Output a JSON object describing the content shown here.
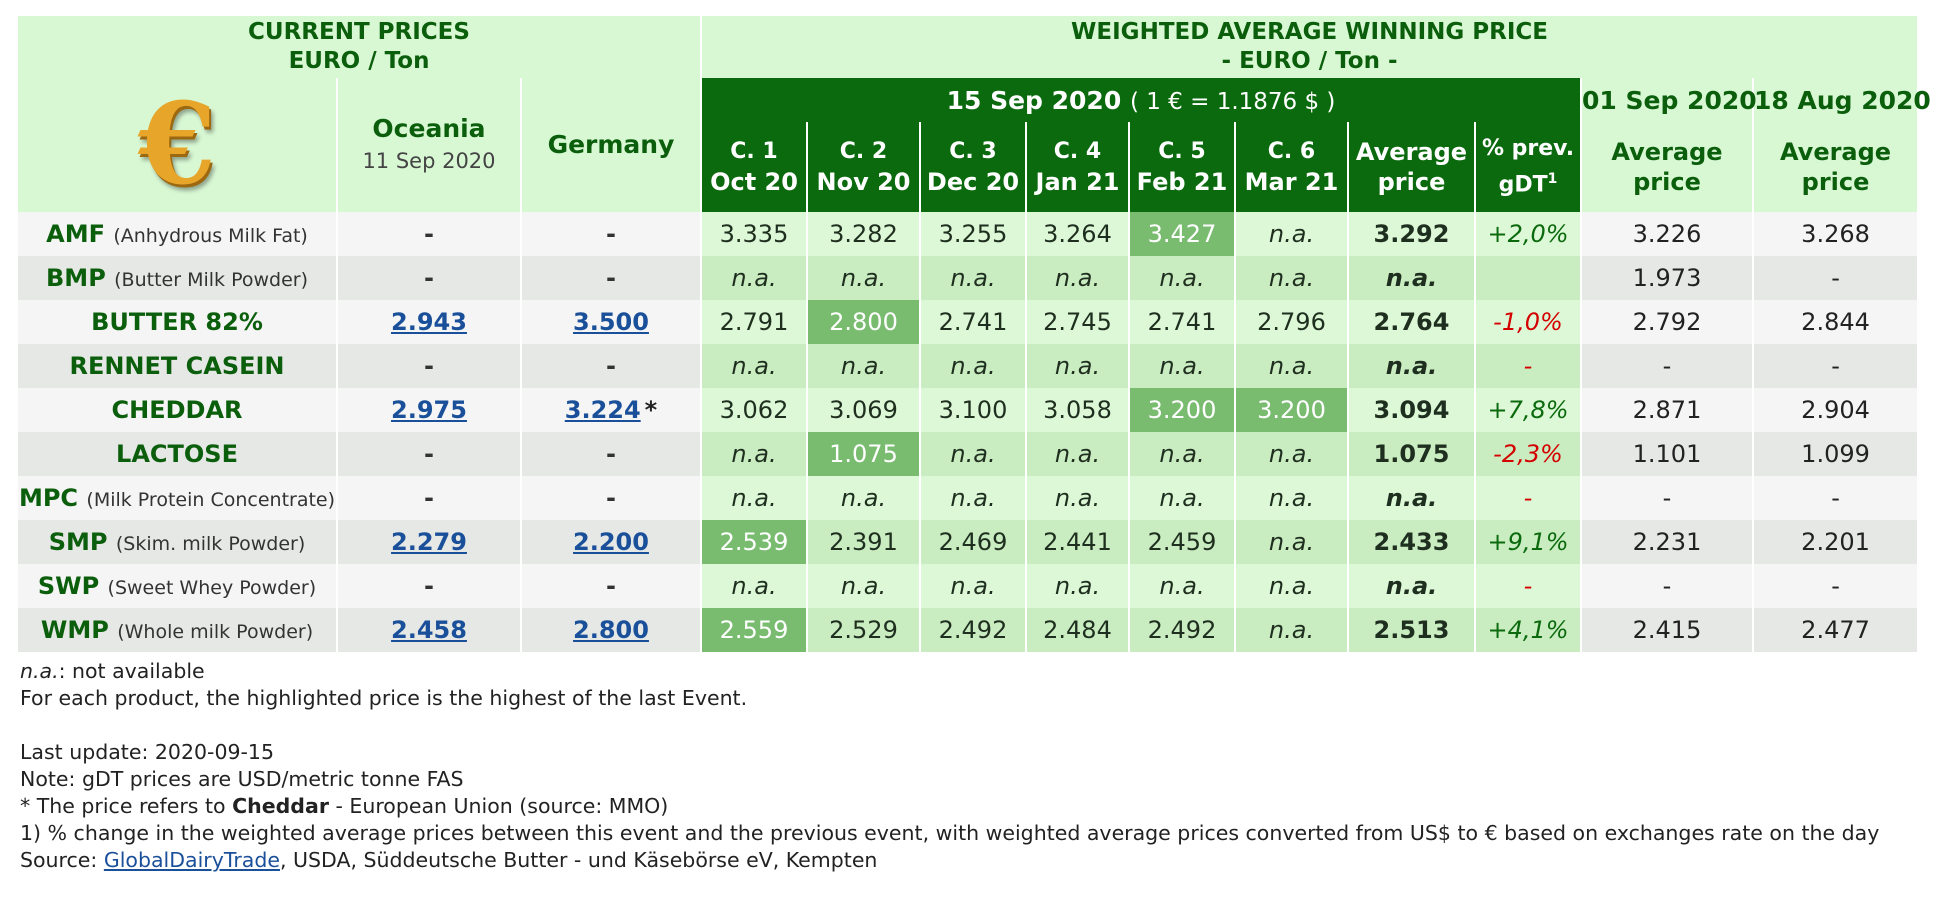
{
  "header": {
    "current_prices_line1": "CURRENT PRICES",
    "current_prices_line2": "EURO / Ton",
    "weighted_line1": "WEIGHTED AVERAGE WINNING PRICE",
    "weighted_line2": "- EURO / Ton -",
    "event_date": "15 Sep 2020",
    "exchange_rate": "( 1 € = 1.1876 $ )",
    "prev_event_1": "01 Sep 2020",
    "prev_event_2": "18 Aug 2020",
    "oceania_label": "Oceania",
    "oceania_date": "11 Sep 2020",
    "germany_label": "Germany",
    "euro_symbol": "€",
    "contracts": [
      {
        "code": "C. 1",
        "month": "Oct 20"
      },
      {
        "code": "C. 2",
        "month": "Nov 20"
      },
      {
        "code": "C. 3",
        "month": "Dec 20"
      },
      {
        "code": "C. 4",
        "month": "Jan 21"
      },
      {
        "code": "C. 5",
        "month": "Feb 21"
      },
      {
        "code": "C. 6",
        "month": "Mar 21"
      }
    ],
    "average_line1": "Average",
    "average_line2": "price",
    "prev_change_line1": "% prev.",
    "prev_change_line2": "gDT",
    "prev_change_sup": "1"
  },
  "rows": [
    {
      "code": "AMF",
      "desc": "(Anhydrous Milk Fat)",
      "oceania": "-",
      "germany": "-",
      "germany_note": "",
      "c": [
        "3.335",
        "3.282",
        "3.255",
        "3.264",
        "3.427",
        "n.a."
      ],
      "avg": "3.292",
      "chg": "+2,0%",
      "prev1": "3.226",
      "prev2": "3.268"
    },
    {
      "code": "BMP",
      "desc": "(Butter Milk Powder)",
      "oceania": "-",
      "germany": "-",
      "germany_note": "",
      "c": [
        "n.a.",
        "n.a.",
        "n.a.",
        "n.a.",
        "n.a.",
        "n.a."
      ],
      "avg": "n.a.",
      "chg": "",
      "prev1": "1.973",
      "prev2": "-"
    },
    {
      "code": "BUTTER 82%",
      "desc": "",
      "oceania": "2.943",
      "germany": "3.500",
      "germany_note": "",
      "c": [
        "2.791",
        "2.800",
        "2.741",
        "2.745",
        "2.741",
        "2.796"
      ],
      "avg": "2.764",
      "chg": "-1,0%",
      "prev1": "2.792",
      "prev2": "2.844"
    },
    {
      "code": "RENNET CASEIN",
      "desc": "",
      "oceania": "-",
      "germany": "-",
      "germany_note": "",
      "c": [
        "n.a.",
        "n.a.",
        "n.a.",
        "n.a.",
        "n.a.",
        "n.a."
      ],
      "avg": "n.a.",
      "chg": "-",
      "prev1": "-",
      "prev2": "-"
    },
    {
      "code": "CHEDDAR",
      "desc": "",
      "oceania": "2.975",
      "germany": "3.224",
      "germany_note": "*",
      "c": [
        "3.062",
        "3.069",
        "3.100",
        "3.058",
        "3.200",
        "3.200"
      ],
      "avg": "3.094",
      "chg": "+7,8%",
      "prev1": "2.871",
      "prev2": "2.904"
    },
    {
      "code": "LACTOSE",
      "desc": "",
      "oceania": "-",
      "germany": "-",
      "germany_note": "",
      "c": [
        "n.a.",
        "1.075",
        "n.a.",
        "n.a.",
        "n.a.",
        "n.a."
      ],
      "avg": "1.075",
      "chg": "-2,3%",
      "prev1": "1.101",
      "prev2": "1.099"
    },
    {
      "code": "MPC",
      "desc": "(Milk Protein Concentrate)",
      "oceania": "-",
      "germany": "-",
      "germany_note": "",
      "c": [
        "n.a.",
        "n.a.",
        "n.a.",
        "n.a.",
        "n.a.",
        "n.a."
      ],
      "avg": "n.a.",
      "chg": "-",
      "prev1": "-",
      "prev2": "-"
    },
    {
      "code": "SMP",
      "desc": "(Skim. milk Powder)",
      "oceania": "2.279",
      "germany": "2.200",
      "germany_note": "",
      "c": [
        "2.539",
        "2.391",
        "2.469",
        "2.441",
        "2.459",
        "n.a."
      ],
      "avg": "2.433",
      "chg": "+9,1%",
      "prev1": "2.231",
      "prev2": "2.201"
    },
    {
      "code": "SWP",
      "desc": "(Sweet Whey Powder)",
      "oceania": "-",
      "germany": "-",
      "germany_note": "",
      "c": [
        "n.a.",
        "n.a.",
        "n.a.",
        "n.a.",
        "n.a.",
        "n.a."
      ],
      "avg": "n.a.",
      "chg": "-",
      "prev1": "-",
      "prev2": "-"
    },
    {
      "code": "WMP",
      "desc": "(Whole milk Powder)",
      "oceania": "2.458",
      "germany": "2.800",
      "germany_note": "",
      "c": [
        "2.559",
        "2.529",
        "2.492",
        "2.484",
        "2.492",
        "n.a."
      ],
      "avg": "2.513",
      "chg": "+4,1%",
      "prev1": "2.415",
      "prev2": "2.477"
    }
  ],
  "highlighted": {
    "AMF": [
      4
    ],
    "BUTTER 82%": [
      1
    ],
    "CHEDDAR": [
      4,
      5
    ],
    "LACTOSE": [
      1
    ],
    "SMP": [
      0
    ],
    "WMP": [
      0
    ]
  },
  "notes": {
    "na_term": "n.a.",
    "na_text": ": not available",
    "highlight_text": "For each product, the highlighted price is the highest of the last Event.",
    "last_update": "Last update: 2020-09-15",
    "gdt_note": "Note: gDT prices are USD/metric tonne FAS",
    "star_prefix": "* The price refers to ",
    "star_bold": "Cheddar",
    "star_suffix": " - European Union (source: MMO)",
    "footnote1": "1) % change in the weighted average prices between this event and the previous event, with weighted average prices converted from US$ to € based on exchanges rate on the day",
    "source_prefix": "Source: ",
    "source_link": "GlobalDairyTrade",
    "source_suffix": ", USDA, Süddeutsche Butter - und Käsebörse eV, Kempten"
  },
  "colors": {
    "dark_green": "#0b6a0e",
    "light_green": "#d8f8d4",
    "highlight_green": "#79bc70",
    "negative_red": "#d40000",
    "link_blue": "#1a4f9a"
  }
}
